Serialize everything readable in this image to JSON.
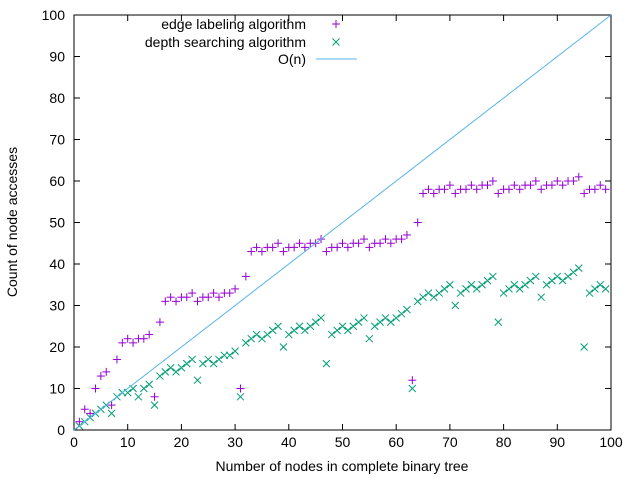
{
  "chart_data": {
    "type": "scatter",
    "title": "",
    "xlabel": "Number of nodes in complete binary tree",
    "ylabel": "Count of node accesses",
    "xlim": [
      0,
      100
    ],
    "ylim": [
      0,
      100
    ],
    "x_ticks": [
      "0",
      "10",
      "20",
      "30",
      "40",
      "50",
      "60",
      "70",
      "80",
      "90",
      "100"
    ],
    "y_ticks": [
      "0",
      "10",
      "20",
      "30",
      "40",
      "50",
      "60",
      "70",
      "80",
      "90",
      "100"
    ],
    "grid": false,
    "legend_position": "top-right",
    "series": [
      {
        "name": "edge labeling algorithm",
        "marker": "plus",
        "color": "#9400d3",
        "x": [
          1,
          2,
          3,
          4,
          5,
          6,
          7,
          8,
          9,
          10,
          11,
          12,
          13,
          14,
          15,
          16,
          17,
          18,
          19,
          20,
          21,
          22,
          23,
          24,
          25,
          26,
          27,
          28,
          29,
          30,
          31,
          32,
          33,
          34,
          35,
          36,
          37,
          38,
          39,
          40,
          41,
          42,
          43,
          44,
          45,
          46,
          47,
          48,
          49,
          50,
          51,
          52,
          53,
          54,
          55,
          56,
          57,
          58,
          59,
          60,
          61,
          62,
          63,
          64,
          65,
          66,
          67,
          68,
          69,
          70,
          71,
          72,
          73,
          74,
          75,
          76,
          77,
          78,
          79,
          80,
          81,
          82,
          83,
          84,
          85,
          86,
          87,
          88,
          89,
          90,
          91,
          92,
          93,
          94,
          95,
          96,
          97,
          98,
          99
        ],
        "y": [
          2,
          5,
          4,
          10,
          13,
          14,
          6,
          17,
          21,
          22,
          21,
          22,
          22,
          23,
          8,
          26,
          31,
          32,
          31,
          32,
          32,
          33,
          31,
          32,
          32,
          33,
          32,
          33,
          33,
          34,
          10,
          37,
          43,
          44,
          43,
          44,
          44,
          45,
          43,
          44,
          44,
          45,
          44,
          45,
          45,
          46,
          43,
          44,
          44,
          45,
          44,
          45,
          45,
          46,
          44,
          45,
          45,
          46,
          45,
          46,
          46,
          47,
          12,
          50,
          57,
          58,
          57,
          58,
          58,
          59,
          57,
          58,
          58,
          59,
          58,
          59,
          59,
          60,
          57,
          58,
          58,
          59,
          58,
          59,
          59,
          60,
          58,
          59,
          59,
          60,
          59,
          60,
          60,
          61,
          57,
          58,
          58,
          59,
          58
        ]
      },
      {
        "name": "depth searching algorithm",
        "marker": "cross",
        "color": "#009e73",
        "x": [
          1,
          2,
          3,
          4,
          5,
          6,
          7,
          8,
          9,
          10,
          11,
          12,
          13,
          14,
          15,
          16,
          17,
          18,
          19,
          20,
          21,
          22,
          23,
          24,
          25,
          26,
          27,
          28,
          29,
          30,
          31,
          32,
          33,
          34,
          35,
          36,
          37,
          38,
          39,
          40,
          41,
          42,
          43,
          44,
          45,
          46,
          47,
          48,
          49,
          50,
          51,
          52,
          53,
          54,
          55,
          56,
          57,
          58,
          59,
          60,
          61,
          62,
          63,
          64,
          65,
          66,
          67,
          68,
          69,
          70,
          71,
          72,
          73,
          74,
          75,
          76,
          77,
          78,
          79,
          80,
          81,
          82,
          83,
          84,
          85,
          86,
          87,
          88,
          89,
          90,
          91,
          92,
          93,
          94,
          95,
          96,
          97,
          98,
          99
        ],
        "y": [
          1,
          2,
          3,
          4,
          5,
          6,
          4,
          8,
          9,
          9,
          10,
          8,
          10,
          11,
          6,
          13,
          14,
          15,
          14,
          15,
          16,
          17,
          12,
          16,
          17,
          16,
          17,
          18,
          18,
          19,
          8,
          21,
          22,
          23,
          22,
          23,
          24,
          25,
          20,
          23,
          24,
          25,
          24,
          25,
          26,
          27,
          16,
          23,
          24,
          25,
          24,
          25,
          26,
          27,
          22,
          25,
          26,
          27,
          26,
          27,
          28,
          29,
          10,
          31,
          32,
          33,
          32,
          33,
          34,
          35,
          30,
          33,
          34,
          35,
          34,
          35,
          36,
          37,
          26,
          33,
          34,
          35,
          34,
          35,
          36,
          37,
          32,
          35,
          36,
          37,
          36,
          37,
          38,
          39,
          20,
          33,
          34,
          35,
          34
        ]
      },
      {
        "name": "O(n)",
        "marker": "line",
        "color": "#56b4e9",
        "x": [
          0,
          100
        ],
        "y": [
          0,
          100
        ]
      }
    ]
  }
}
